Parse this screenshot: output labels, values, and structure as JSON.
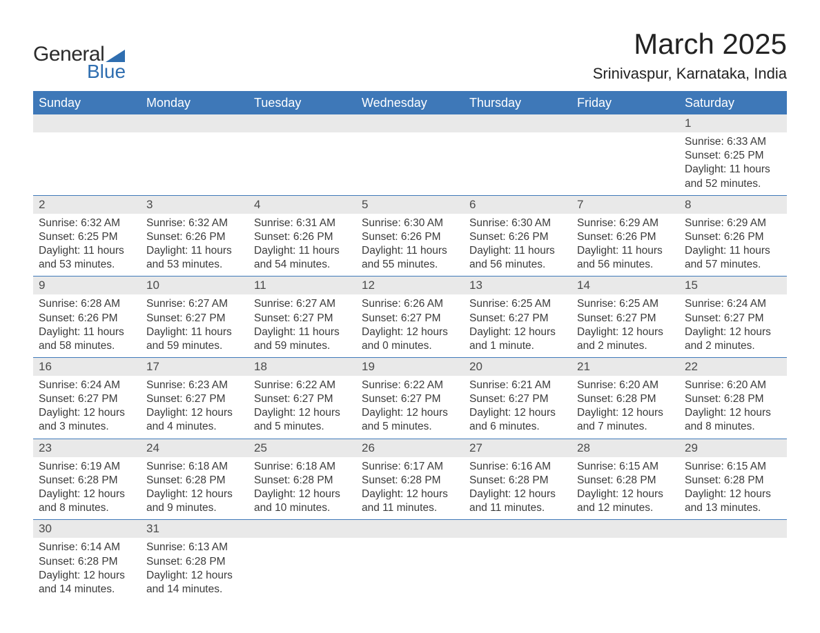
{
  "brand": {
    "word1": "General",
    "word2": "Blue"
  },
  "title": {
    "month": "March 2025",
    "location": "Srinivaspur, Karnataka, India"
  },
  "styling": {
    "header_bg": "#3e78b8",
    "header_text": "#ffffff",
    "daynum_bg": "#e9e9e9",
    "row_border": "#3e78b8",
    "body_text": "#3a3a3a",
    "logo_accent": "#2f6eb0",
    "page_bg": "#ffffff",
    "title_fontsize_pt": 32,
    "location_fontsize_pt": 17,
    "header_fontsize_pt": 14,
    "cell_fontsize_pt": 12
  },
  "weekdays": [
    "Sunday",
    "Monday",
    "Tuesday",
    "Wednesday",
    "Thursday",
    "Friday",
    "Saturday"
  ],
  "weeks": [
    {
      "nums": [
        "",
        "",
        "",
        "",
        "",
        "",
        "1"
      ],
      "cells": [
        "",
        "",
        "",
        "",
        "",
        "",
        "Sunrise: 6:33 AM\nSunset: 6:25 PM\nDaylight: 11 hours and 52 minutes."
      ]
    },
    {
      "nums": [
        "2",
        "3",
        "4",
        "5",
        "6",
        "7",
        "8"
      ],
      "cells": [
        "Sunrise: 6:32 AM\nSunset: 6:25 PM\nDaylight: 11 hours and 53 minutes.",
        "Sunrise: 6:32 AM\nSunset: 6:26 PM\nDaylight: 11 hours and 53 minutes.",
        "Sunrise: 6:31 AM\nSunset: 6:26 PM\nDaylight: 11 hours and 54 minutes.",
        "Sunrise: 6:30 AM\nSunset: 6:26 PM\nDaylight: 11 hours and 55 minutes.",
        "Sunrise: 6:30 AM\nSunset: 6:26 PM\nDaylight: 11 hours and 56 minutes.",
        "Sunrise: 6:29 AM\nSunset: 6:26 PM\nDaylight: 11 hours and 56 minutes.",
        "Sunrise: 6:29 AM\nSunset: 6:26 PM\nDaylight: 11 hours and 57 minutes."
      ]
    },
    {
      "nums": [
        "9",
        "10",
        "11",
        "12",
        "13",
        "14",
        "15"
      ],
      "cells": [
        "Sunrise: 6:28 AM\nSunset: 6:26 PM\nDaylight: 11 hours and 58 minutes.",
        "Sunrise: 6:27 AM\nSunset: 6:27 PM\nDaylight: 11 hours and 59 minutes.",
        "Sunrise: 6:27 AM\nSunset: 6:27 PM\nDaylight: 11 hours and 59 minutes.",
        "Sunrise: 6:26 AM\nSunset: 6:27 PM\nDaylight: 12 hours and 0 minutes.",
        "Sunrise: 6:25 AM\nSunset: 6:27 PM\nDaylight: 12 hours and 1 minute.",
        "Sunrise: 6:25 AM\nSunset: 6:27 PM\nDaylight: 12 hours and 2 minutes.",
        "Sunrise: 6:24 AM\nSunset: 6:27 PM\nDaylight: 12 hours and 2 minutes."
      ]
    },
    {
      "nums": [
        "16",
        "17",
        "18",
        "19",
        "20",
        "21",
        "22"
      ],
      "cells": [
        "Sunrise: 6:24 AM\nSunset: 6:27 PM\nDaylight: 12 hours and 3 minutes.",
        "Sunrise: 6:23 AM\nSunset: 6:27 PM\nDaylight: 12 hours and 4 minutes.",
        "Sunrise: 6:22 AM\nSunset: 6:27 PM\nDaylight: 12 hours and 5 minutes.",
        "Sunrise: 6:22 AM\nSunset: 6:27 PM\nDaylight: 12 hours and 5 minutes.",
        "Sunrise: 6:21 AM\nSunset: 6:27 PM\nDaylight: 12 hours and 6 minutes.",
        "Sunrise: 6:20 AM\nSunset: 6:28 PM\nDaylight: 12 hours and 7 minutes.",
        "Sunrise: 6:20 AM\nSunset: 6:28 PM\nDaylight: 12 hours and 8 minutes."
      ]
    },
    {
      "nums": [
        "23",
        "24",
        "25",
        "26",
        "27",
        "28",
        "29"
      ],
      "cells": [
        "Sunrise: 6:19 AM\nSunset: 6:28 PM\nDaylight: 12 hours and 8 minutes.",
        "Sunrise: 6:18 AM\nSunset: 6:28 PM\nDaylight: 12 hours and 9 minutes.",
        "Sunrise: 6:18 AM\nSunset: 6:28 PM\nDaylight: 12 hours and 10 minutes.",
        "Sunrise: 6:17 AM\nSunset: 6:28 PM\nDaylight: 12 hours and 11 minutes.",
        "Sunrise: 6:16 AM\nSunset: 6:28 PM\nDaylight: 12 hours and 11 minutes.",
        "Sunrise: 6:15 AM\nSunset: 6:28 PM\nDaylight: 12 hours and 12 minutes.",
        "Sunrise: 6:15 AM\nSunset: 6:28 PM\nDaylight: 12 hours and 13 minutes."
      ]
    },
    {
      "nums": [
        "30",
        "31",
        "",
        "",
        "",
        "",
        ""
      ],
      "cells": [
        "Sunrise: 6:14 AM\nSunset: 6:28 PM\nDaylight: 12 hours and 14 minutes.",
        "Sunrise: 6:13 AM\nSunset: 6:28 PM\nDaylight: 12 hours and 14 minutes.",
        "",
        "",
        "",
        "",
        ""
      ]
    }
  ]
}
